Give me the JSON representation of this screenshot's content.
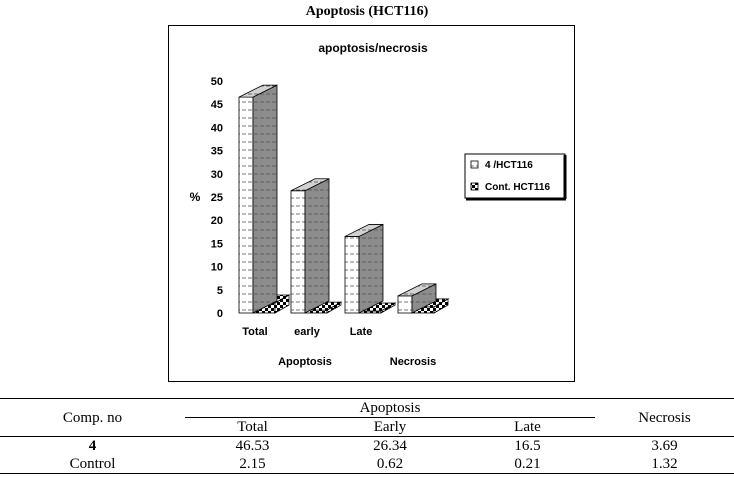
{
  "page_title": "Apoptosis (HCT116)",
  "colors": {
    "series1_face": "#ffffff",
    "series1_side": "#d0d0d0",
    "series2_face": "#8c8c8c",
    "series2_side": "#6a6a6a",
    "floor_checker_dark": "#000000"
  },
  "chart_data": {
    "type": "bar",
    "subtype": "3d-clustered",
    "title": "apoptosis/necrosis",
    "ylabel": "%",
    "ylim": [
      0,
      50
    ],
    "yticks": [
      0,
      5,
      10,
      15,
      20,
      25,
      30,
      35,
      40,
      45,
      50
    ],
    "categories": [
      "Total",
      "early",
      "Late",
      ""
    ],
    "group_labels": [
      "Apoptosis",
      "Necrosis"
    ],
    "series": [
      {
        "name": "4 /HCT116",
        "values": [
          46.53,
          26.34,
          16.5,
          3.69
        ]
      },
      {
        "name": "Cont. HCT116",
        "values": [
          2.15,
          0.62,
          0.21,
          1.32
        ]
      }
    ],
    "legend_position": "right",
    "grid": false
  },
  "table": {
    "row_header": "Comp. no",
    "group_header": "Apoptosis",
    "sub_headers": [
      "Total",
      "Early",
      "Late"
    ],
    "last_header": "Necrosis",
    "rows": [
      {
        "label": "4",
        "values": [
          "46.53",
          "26.34",
          "16.5",
          "3.69"
        ]
      },
      {
        "label": "Control",
        "values": [
          "2.15",
          "0.62",
          "0.21",
          "1.32"
        ]
      }
    ]
  }
}
